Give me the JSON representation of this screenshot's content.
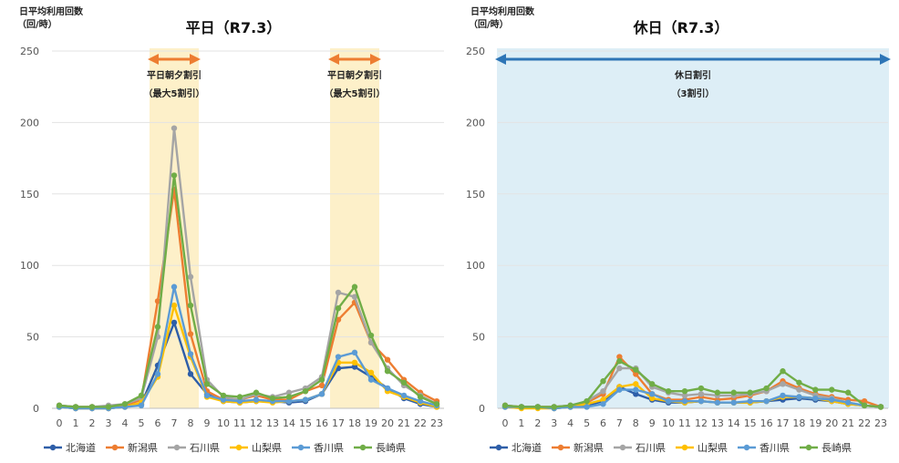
{
  "chart_data": [
    {
      "type": "line",
      "title": "平日（R7.3）",
      "ylabel": "日平均利用回数\n（回/時）",
      "unit_line1": "日平均利用回数",
      "unit_line2": "（回/時）",
      "ylim": [
        0,
        250
      ],
      "yticks": [
        "0",
        "50",
        "100",
        "150",
        "200",
        "250"
      ],
      "x": [
        "0",
        "1",
        "2",
        "3",
        "4",
        "5",
        "6",
        "7",
        "8",
        "9",
        "10",
        "11",
        "12",
        "13",
        "14",
        "15",
        "16",
        "17",
        "18",
        "19",
        "20",
        "21",
        "22",
        "23"
      ],
      "grid": true,
      "legend": "bottom",
      "bands": [
        {
          "from": 5.5,
          "to": 8.5,
          "color": "#FDF0C9",
          "line1": "平日朝夕割引",
          "line2": "（最大5割引）",
          "arrow_color": "#ED7D31"
        },
        {
          "from": 16.5,
          "to": 19.5,
          "color": "#FDF0C9",
          "line1": "平日朝夕割引",
          "line2": "（最大5割引）",
          "arrow_color": "#ED7D31"
        }
      ],
      "series": [
        {
          "name": "北海道",
          "color": "#2E5EA8",
          "values": [
            1,
            0,
            0,
            0,
            1,
            3,
            30,
            60,
            24,
            10,
            5,
            4,
            5,
            5,
            4,
            5,
            10,
            28,
            29,
            22,
            14,
            7,
            3,
            1
          ]
        },
        {
          "name": "新潟県",
          "color": "#ED7D31",
          "values": [
            2,
            1,
            1,
            1,
            2,
            6,
            75,
            153,
            52,
            12,
            6,
            6,
            9,
            6,
            6,
            12,
            16,
            62,
            74,
            46,
            34,
            20,
            11,
            5
          ]
        },
        {
          "name": "石川県",
          "color": "#A5A5A5",
          "values": [
            2,
            1,
            1,
            2,
            3,
            7,
            50,
            196,
            92,
            20,
            8,
            6,
            10,
            8,
            11,
            14,
            22,
            81,
            78,
            46,
            28,
            16,
            9,
            3
          ]
        },
        {
          "name": "山梨県",
          "color": "#FFC000",
          "values": [
            1,
            0,
            0,
            0,
            1,
            4,
            22,
            72,
            36,
            8,
            5,
            4,
            5,
            4,
            5,
            6,
            10,
            32,
            32,
            25,
            12,
            8,
            4,
            1
          ]
        },
        {
          "name": "香川県",
          "color": "#5B9BD5",
          "values": [
            1,
            0,
            0,
            0,
            1,
            2,
            24,
            85,
            38,
            9,
            6,
            5,
            6,
            5,
            5,
            6,
            10,
            36,
            39,
            20,
            14,
            9,
            5,
            2
          ]
        },
        {
          "name": "長崎県",
          "color": "#70AD47",
          "values": [
            2,
            1,
            1,
            1,
            3,
            9,
            57,
            163,
            72,
            17,
            9,
            8,
            11,
            7,
            8,
            12,
            20,
            70,
            85,
            51,
            26,
            18,
            8,
            3
          ]
        }
      ]
    },
    {
      "type": "line",
      "title": "休日（R7.3）",
      "ylabel": "日平均利用回数\n（回/時）",
      "unit_line1": "日平均利用回数",
      "unit_line2": "（回/時）",
      "ylim": [
        0,
        250
      ],
      "yticks": [
        "0",
        "50",
        "100",
        "150",
        "200",
        "250"
      ],
      "x": [
        "0",
        "1",
        "2",
        "3",
        "4",
        "5",
        "6",
        "7",
        "8",
        "9",
        "10",
        "11",
        "12",
        "13",
        "14",
        "15",
        "16",
        "17",
        "18",
        "19",
        "20",
        "21",
        "22",
        "23"
      ],
      "grid": true,
      "legend": "bottom",
      "bands": [
        {
          "from": -0.5,
          "to": 23.5,
          "color": "#DDEEF6",
          "line1": "休日割引",
          "line2": "（3割引）",
          "arrow_color": "#2E75B6"
        }
      ],
      "series": [
        {
          "name": "北海道",
          "color": "#2E5EA8",
          "values": [
            1,
            1,
            1,
            0,
            1,
            2,
            5,
            15,
            10,
            6,
            4,
            4,
            5,
            4,
            4,
            4,
            5,
            6,
            7,
            6,
            5,
            3,
            2,
            1
          ]
        },
        {
          "name": "新潟県",
          "color": "#ED7D31",
          "values": [
            2,
            1,
            1,
            1,
            2,
            4,
            10,
            36,
            24,
            10,
            6,
            6,
            8,
            6,
            7,
            9,
            12,
            19,
            14,
            10,
            8,
            6,
            5,
            1
          ]
        },
        {
          "name": "石川県",
          "color": "#A5A5A5",
          "values": [
            2,
            1,
            1,
            1,
            2,
            5,
            12,
            28,
            28,
            15,
            11,
            9,
            10,
            9,
            9,
            10,
            12,
            17,
            13,
            9,
            7,
            4,
            2,
            1
          ]
        },
        {
          "name": "山梨県",
          "color": "#FFC000",
          "values": [
            1,
            0,
            0,
            0,
            1,
            3,
            6,
            15,
            17,
            7,
            5,
            4,
            5,
            4,
            4,
            4,
            5,
            8,
            8,
            7,
            5,
            3,
            2,
            1
          ]
        },
        {
          "name": "香川県",
          "color": "#5B9BD5",
          "values": [
            1,
            1,
            1,
            0,
            1,
            1,
            3,
            13,
            13,
            10,
            5,
            5,
            5,
            4,
            4,
            5,
            5,
            9,
            8,
            7,
            6,
            4,
            2,
            1
          ]
        },
        {
          "name": "長崎県",
          "color": "#70AD47",
          "values": [
            2,
            1,
            1,
            1,
            2,
            5,
            19,
            33,
            27,
            17,
            12,
            12,
            14,
            11,
            11,
            11,
            14,
            26,
            18,
            13,
            13,
            11,
            2,
            1
          ]
        }
      ]
    }
  ]
}
